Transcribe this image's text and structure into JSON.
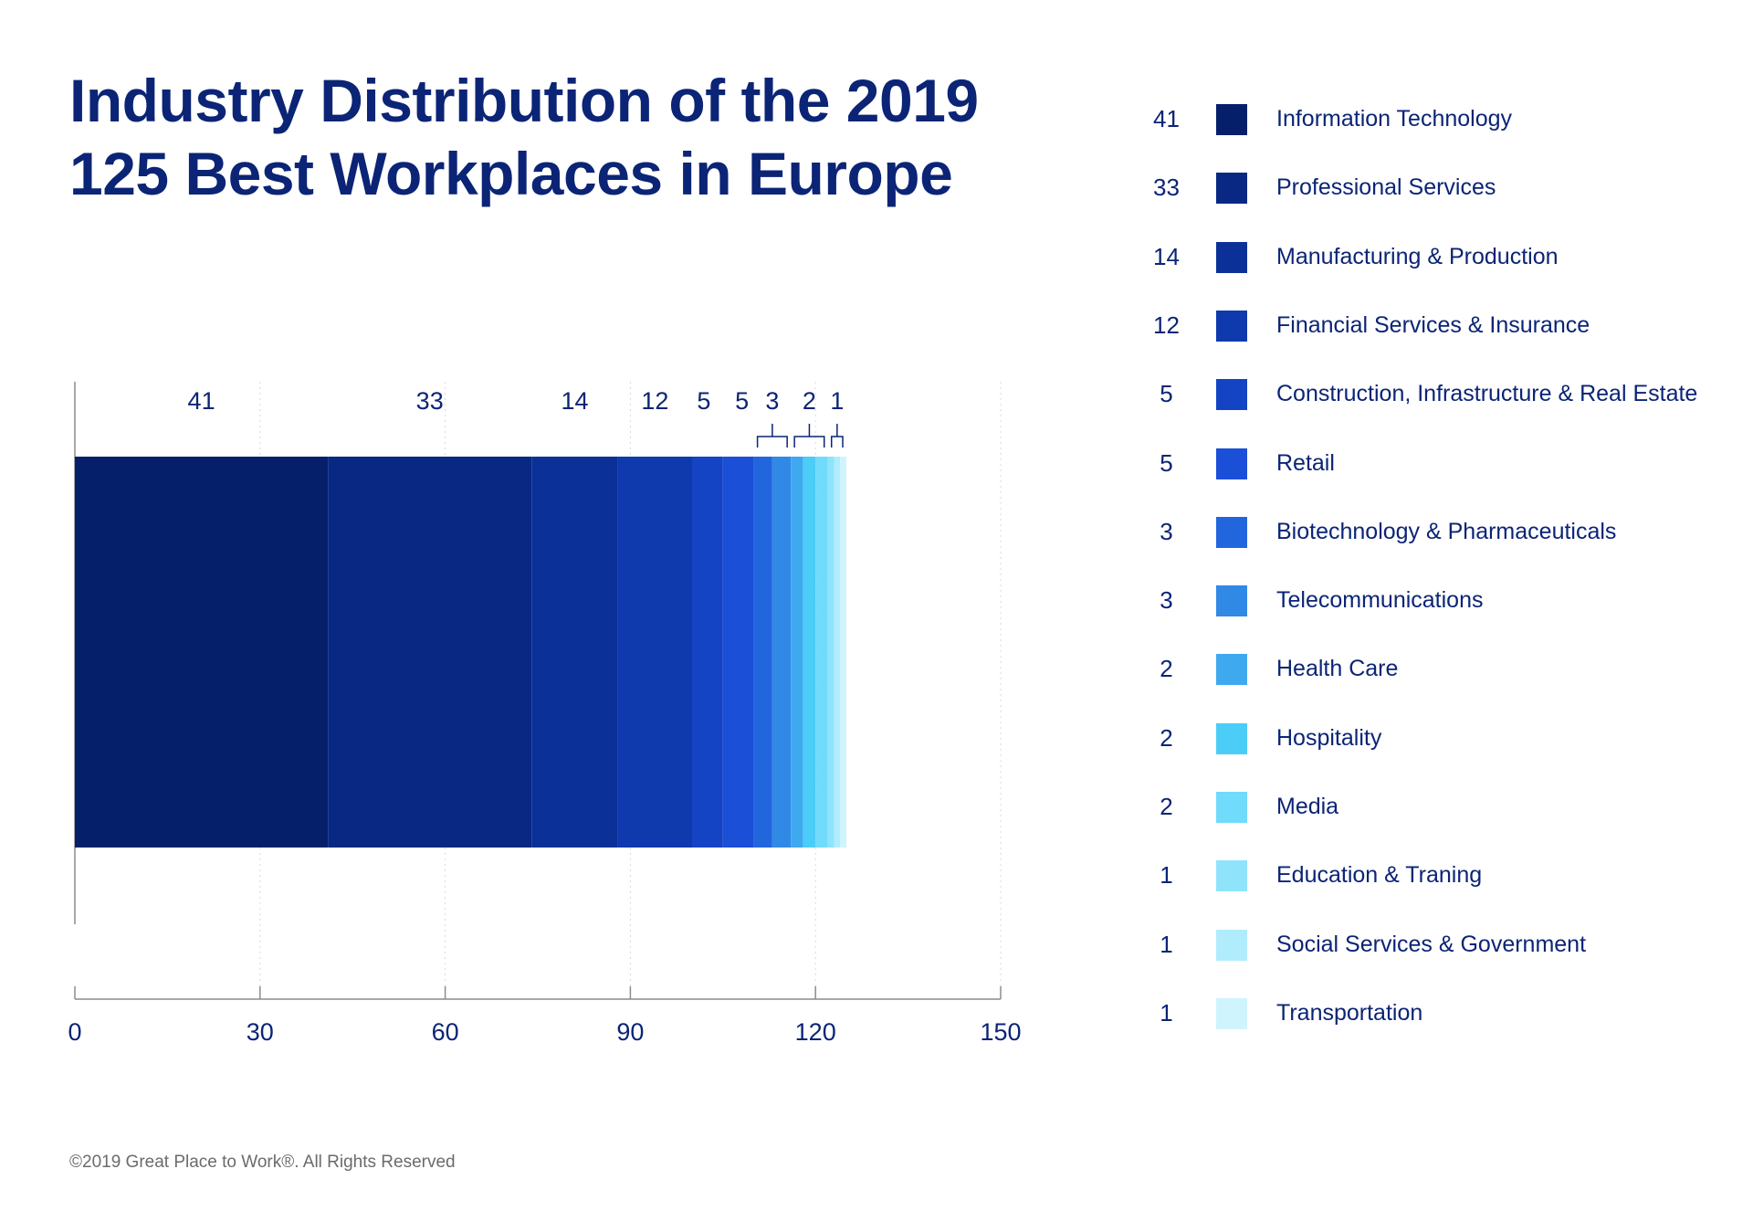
{
  "title_lines": [
    "Industry Distribution of the 2019",
    "125 Best Workplaces in Europe"
  ],
  "footer": "©2019 Great Place to Work®. All Rights Reserved",
  "chart_data": {
    "type": "bar",
    "orientation": "horizontal-stacked",
    "title": "Industry Distribution of the 2019 125 Best Workplaces in Europe",
    "xlim": [
      0,
      150
    ],
    "x_ticks": [
      0,
      30,
      60,
      90,
      120,
      150
    ],
    "grid": true,
    "legend_placement": "right",
    "series": [
      {
        "name": "Information Technology",
        "value": 41,
        "color": "#051f6b"
      },
      {
        "name": "Professional Services",
        "value": 33,
        "color": "#082884"
      },
      {
        "name": "Manufacturing & Production",
        "value": 14,
        "color": "#0b3199"
      },
      {
        "name": "Financial Services & Insurance",
        "value": 12,
        "color": "#0f3aad"
      },
      {
        "name": "Construction, Infrastructure & Real Estate",
        "value": 5,
        "color": "#1444c4"
      },
      {
        "name": "Retail",
        "value": 5,
        "color": "#1b4fd8"
      },
      {
        "name": "Biotechnology & Pharmaceuticals",
        "value": 3,
        "color": "#2266de"
      },
      {
        "name": "Telecommunications",
        "value": 3,
        "color": "#3189e6"
      },
      {
        "name": "Health Care",
        "value": 2,
        "color": "#3fa9ef"
      },
      {
        "name": "Hospitality",
        "value": 2,
        "color": "#4bcdf7"
      },
      {
        "name": "Media",
        "value": 2,
        "color": "#70dbfb"
      },
      {
        "name": "Education & Traning",
        "value": 1,
        "color": "#8fe4fc"
      },
      {
        "name": "Social Services & Government",
        "value": 1,
        "color": "#b1ecfd"
      },
      {
        "name": "Transportation",
        "value": 1,
        "color": "#cff4fe"
      }
    ],
    "bar_value_labels": [
      "41",
      "33",
      "14",
      "12",
      "5",
      "5",
      "3",
      "2",
      "1"
    ]
  }
}
